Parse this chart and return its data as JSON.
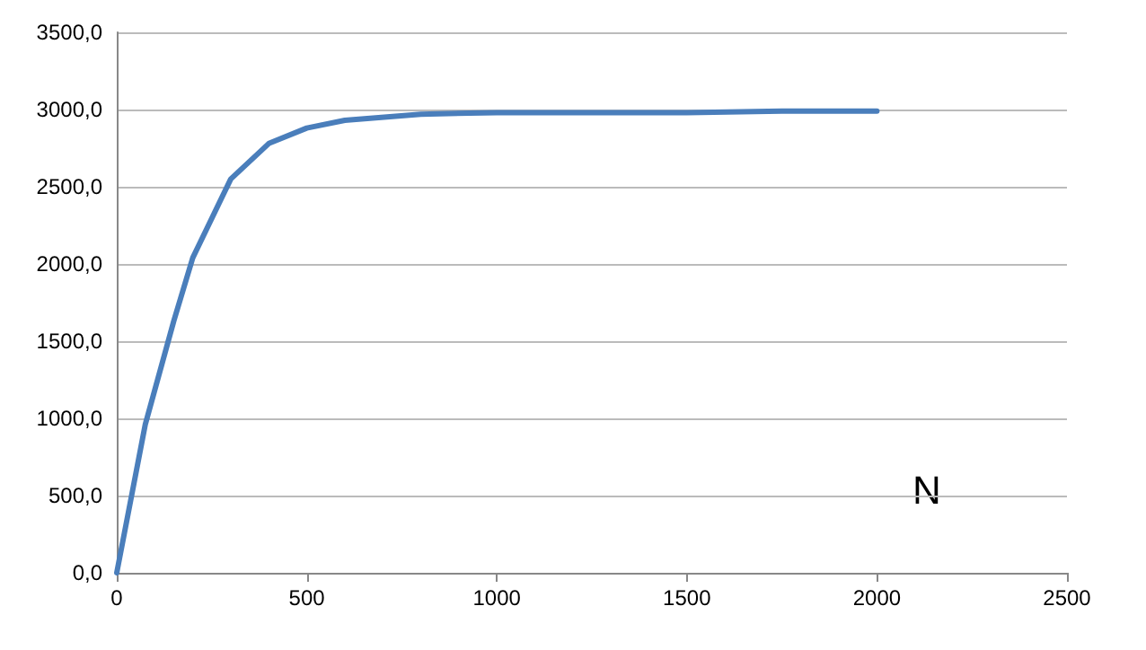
{
  "chart_data": {
    "type": "line",
    "x": [
      0,
      75,
      150,
      200,
      300,
      400,
      500,
      600,
      800,
      1000,
      1250,
      1500,
      1750,
      2000
    ],
    "series": [
      {
        "color": "#4a7ebb",
        "values": [
          0,
          960,
          1630,
          2040,
          2550,
          2780,
          2880,
          2930,
          2970,
          2980,
          2980,
          2980,
          2990,
          2990
        ]
      }
    ],
    "xlim": [
      0,
      2500
    ],
    "xticks": [
      0,
      500,
      1000,
      1500,
      2000,
      2500
    ],
    "ylim": [
      0,
      3500
    ],
    "yticks": [
      {
        "value": 0,
        "label": "0,0"
      },
      {
        "value": 500,
        "label": "500,0"
      },
      {
        "value": 1000,
        "label": "1000,0"
      },
      {
        "value": 1500,
        "label": "1500,0"
      },
      {
        "value": 2000,
        "label": "2000,0"
      },
      {
        "value": 2500,
        "label": "2500,0"
      },
      {
        "value": 3000,
        "label": "3000,0"
      },
      {
        "value": 3500,
        "label": "3500,0"
      }
    ],
    "grid": "y",
    "marker": "none",
    "line_style": "solid",
    "annotations": [
      "N"
    ]
  }
}
